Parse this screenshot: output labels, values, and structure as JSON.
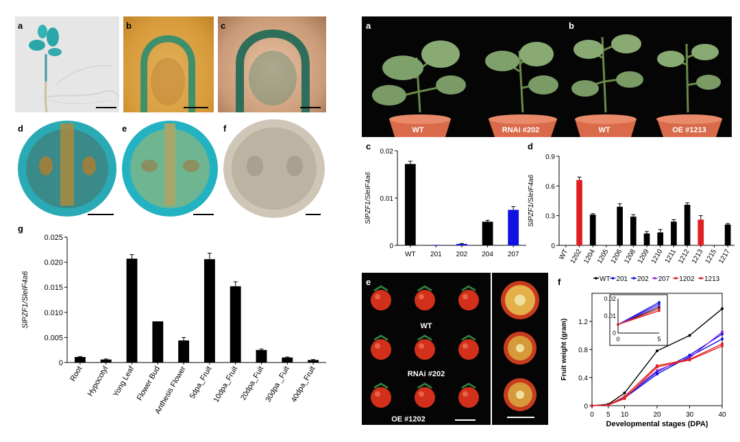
{
  "left_figure": {
    "panel_labels": {
      "a": "a",
      "b": "b",
      "c": "c",
      "d": "d",
      "e": "e",
      "f": "f",
      "g": "g"
    }
  },
  "right_figure": {
    "panel_labels": {
      "a": "a",
      "b": "b",
      "c": "c",
      "d": "d",
      "e": "e",
      "f": "f"
    },
    "pots": {
      "wt_a": "WT",
      "rnai": "RNAi #202",
      "wt_b": "WT",
      "oe": "OE #1213"
    },
    "fruit_captions": {
      "wt": "WT",
      "rnai": "RNAi #202",
      "oe": "OE #1202"
    }
  },
  "colors": {
    "black": "#000000",
    "blue": "#1010e0",
    "red": "#e02020",
    "purple": "#8a2be2",
    "plot_bg": "#ffffff"
  },
  "chart_data": [
    {
      "id": "g",
      "type": "bar",
      "ylabel": "SlPZF1/SleIF4a6",
      "ylim": [
        0,
        0.025
      ],
      "yticks": [
        "0",
        "0.005",
        "0.010",
        "0.015",
        "0.020",
        "0.025"
      ],
      "categories": [
        "Root",
        "Hypocotyl",
        "Yong Leaf",
        "Flower Bud",
        "Anthesis Flower",
        "5dpa_Fruit",
        "10dpa_Fruit",
        "20dpa_Fuit",
        "30dpa _Fuit",
        "40dpa_Fruit"
      ],
      "values": [
        0.0011,
        0.0006,
        0.0207,
        0.0082,
        0.0044,
        0.0206,
        0.0152,
        0.0025,
        0.001,
        0.0005
      ],
      "errors": [
        0.0001,
        0.0001,
        0.0008,
        0.0,
        0.0006,
        0.0012,
        0.0009,
        0.0002,
        0.0001,
        0.0001
      ]
    },
    {
      "id": "c",
      "type": "bar",
      "ylabel": "SlPZF1/SleIF4a6",
      "ylim": [
        0,
        0.02
      ],
      "yticks": [
        "0",
        "0.01",
        "0.02"
      ],
      "categories": [
        "WT",
        "201",
        "202",
        "204",
        "207"
      ],
      "values": [
        0.0172,
        0.0001,
        0.0003,
        0.005,
        0.0075
      ],
      "errors": [
        0.0006,
        0.0,
        0.0001,
        0.0003,
        0.0007
      ],
      "bar_colors": [
        "#000000",
        "#1010e0",
        "#1010e0",
        "#000000",
        "#1010e0"
      ]
    },
    {
      "id": "d",
      "type": "bar",
      "ylabel": "SlPZF1/SleIF4a6",
      "ylim": [
        0,
        0.9
      ],
      "yticks": [
        "0",
        "0.3",
        "0.6",
        "0.9"
      ],
      "categories": [
        "WT",
        "1202",
        "1204",
        "1205",
        "1206",
        "1208",
        "1209",
        "1210",
        "1211",
        "1212",
        "1213",
        "1215",
        "1217"
      ],
      "values": [
        0.0,
        0.66,
        0.31,
        0.0,
        0.39,
        0.29,
        0.12,
        0.13,
        0.24,
        0.41,
        0.26,
        0.0,
        0.21
      ],
      "errors": [
        0.0,
        0.03,
        0.01,
        0.0,
        0.03,
        0.02,
        0.02,
        0.03,
        0.02,
        0.02,
        0.04,
        0.0,
        0.01
      ],
      "bar_colors": [
        "#000000",
        "#e02020",
        "#000000",
        "#000000",
        "#000000",
        "#000000",
        "#000000",
        "#000000",
        "#000000",
        "#000000",
        "#e02020",
        "#000000",
        "#000000"
      ]
    },
    {
      "id": "f",
      "type": "line",
      "xlabel": "Developmental stages (DPA)",
      "ylabel": "Fruit weight (gram)",
      "xlim": [
        0,
        40
      ],
      "ylim": [
        0,
        1.6
      ],
      "xticks": [
        "0",
        "5",
        "10",
        "20",
        "30",
        "40"
      ],
      "x": [
        0,
        5,
        10,
        20,
        30,
        40
      ],
      "yticks": [
        "0",
        "0.4",
        "0.8",
        "1.2"
      ],
      "legend_prefix": "-",
      "series": [
        {
          "name": "WT",
          "color": "#000000",
          "values": [
            0,
            0.02,
            0.18,
            0.78,
            1.0,
            1.38
          ]
        },
        {
          "name": "201",
          "color": "#1010e0",
          "values": [
            0,
            0.01,
            0.12,
            0.48,
            0.72,
            1.02
          ]
        },
        {
          "name": "202",
          "color": "#1010e0",
          "values": [
            0,
            0.01,
            0.11,
            0.45,
            0.7,
            0.95
          ]
        },
        {
          "name": "207",
          "color": "#8a2be2",
          "values": [
            0,
            0.01,
            0.12,
            0.5,
            0.68,
            1.05
          ]
        },
        {
          "name": "1202",
          "color": "#e02020",
          "values": [
            0,
            0.01,
            0.1,
            0.55,
            0.65,
            0.85
          ]
        },
        {
          "name": "1213",
          "color": "#e02020",
          "values": [
            0,
            0.01,
            0.13,
            0.57,
            0.66,
            0.88
          ]
        }
      ],
      "inset": {
        "xlim": [
          0,
          5
        ],
        "ylim": [
          0,
          0.02
        ],
        "xticks": [
          "0",
          "5"
        ],
        "yticks": [
          "0",
          "0.01",
          "0.02"
        ],
        "x": [
          0,
          5
        ],
        "series": [
          {
            "name": "WT",
            "color": "#000000",
            "values": [
              0.005,
              0.015
            ]
          },
          {
            "name": "201",
            "color": "#1010e0",
            "values": [
              0.005,
              0.017
            ]
          },
          {
            "name": "202",
            "color": "#1010e0",
            "values": [
              0.005,
              0.018
            ]
          },
          {
            "name": "207",
            "color": "#8a2be2",
            "values": [
              0.005,
              0.016
            ]
          },
          {
            "name": "1202",
            "color": "#e02020",
            "values": [
              0.005,
              0.013
            ]
          },
          {
            "name": "1213",
            "color": "#e02020",
            "values": [
              0.005,
              0.014
            ]
          }
        ]
      }
    }
  ]
}
